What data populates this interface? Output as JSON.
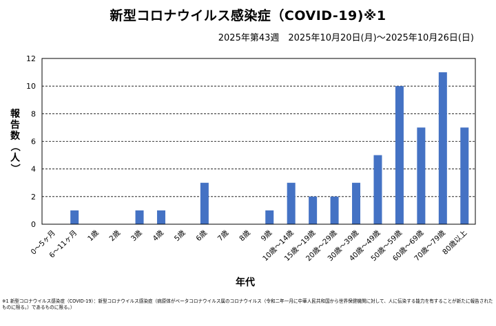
{
  "title": "新型コロナウイルス感染症（COVID-19)※1",
  "subtitle": "2025年第43週　2025年10月20日(月)～2025年10月26日(日)",
  "footnote": "※1 新型コロナウイルス感染症（COVID-19）：新型コロナウイルス感染症（病原体がベータコロナウイルス属のコロナウイルス（令和二年一月に中華人民共和国から世界保健機関に対して、人に伝染する能力を有することが新たに報告されたものに限る。）であるものに限る。）",
  "chart_data": {
    "type": "bar",
    "xlabel": "年代",
    "ylabel": "報告数（人）",
    "ylim": [
      0,
      12
    ],
    "yticks": [
      0,
      2,
      4,
      6,
      8,
      10,
      12
    ],
    "grid": true,
    "color": "#4472c4",
    "categories": [
      "0～5ヶ月",
      "6～11ヶ月",
      "1歳",
      "2歳",
      "3歳",
      "4歳",
      "5歳",
      "6歳",
      "7歳",
      "8歳",
      "9歳",
      "10歳～14歳",
      "15歳～19歳",
      "20歳～29歳",
      "30歳～39歳",
      "40歳～49歳",
      "50歳～59歳",
      "60歳～69歳",
      "70歳～79歳",
      "80歳以上"
    ],
    "values": [
      0,
      1,
      0,
      0,
      1,
      1,
      0,
      3,
      0,
      0,
      1,
      3,
      2,
      2,
      3,
      5,
      10,
      7,
      11,
      7
    ]
  }
}
